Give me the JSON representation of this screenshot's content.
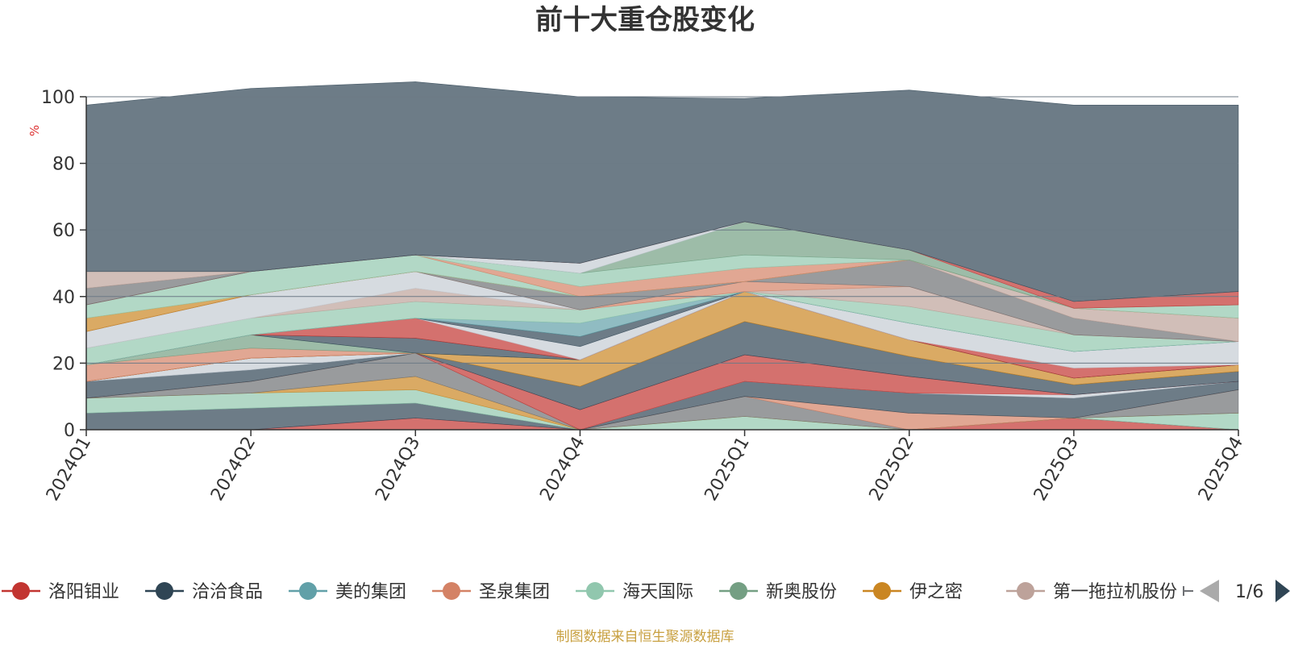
{
  "chart_data": {
    "type": "area",
    "stacked": true,
    "title": "前十大重仓股变化",
    "ylabel": "%",
    "ylim": [
      0,
      100
    ],
    "yticks": [
      0,
      20,
      40,
      60,
      80,
      100
    ],
    "categories": [
      "2024Q1",
      "2024Q2",
      "2024Q3",
      "2024Q4",
      "2025Q1",
      "2025Q2",
      "2025Q3",
      "2025Q4"
    ],
    "grid": true,
    "legend_position": "bottom",
    "legend_page": "1/6",
    "source_note": "制图数据来自恒生聚源数据库",
    "colors": {
      "洛阳钼业": "#c23531",
      "洽洽食品": "#2f4554",
      "美的集团": "#61a0a8",
      "圣泉集团": "#d48265",
      "海天国际": "#91c7ae",
      "新奥股份": "#749f83",
      "伊之密": "#ca8622",
      "第一拖拉机股份": "#bda29a",
      "other_a": "#6e7074",
      "other_b": "#c4ccd3",
      "remainder": "#2f4554"
    },
    "series": [
      {
        "name": "洛阳钼业",
        "color": "#c23531",
        "values": [
          0,
          0,
          3.5,
          0,
          0,
          0,
          3.5,
          0
        ]
      },
      {
        "name": "",
        "color": "#2f4554",
        "values": [
          5,
          6.5,
          4.5,
          0,
          0,
          0,
          0,
          0
        ]
      },
      {
        "name": "",
        "color": "#91c7ae",
        "values": [
          4.5,
          4.5,
          4,
          0,
          4,
          0,
          0,
          5
        ]
      },
      {
        "name": "",
        "color": "#ca8622",
        "values": [
          0,
          0,
          4,
          0,
          0,
          0,
          0,
          0
        ]
      },
      {
        "name": "",
        "color": "#6e7074",
        "values": [
          0,
          3.5,
          7,
          0,
          6,
          0,
          0,
          7
        ]
      },
      {
        "name": "",
        "color": "#d48265",
        "values": [
          0,
          0,
          0,
          0,
          0,
          5,
          0,
          0
        ]
      },
      {
        "name": "",
        "color": "#2f4554",
        "values": [
          5,
          3.5,
          0,
          0,
          4.5,
          6,
          6,
          2.5
        ]
      },
      {
        "name": "",
        "color": "#c4ccd3",
        "values": [
          0,
          3.5,
          0,
          0,
          0,
          0,
          1,
          0
        ]
      },
      {
        "name": "",
        "color": "#c23531",
        "values": [
          0,
          0,
          0,
          6,
          8,
          5,
          0,
          0
        ]
      },
      {
        "name": "",
        "color": "#2f4554",
        "values": [
          0,
          0,
          0,
          7,
          10,
          6,
          3,
          3
        ]
      },
      {
        "name": "",
        "color": "#ca8622",
        "values": [
          0,
          0,
          0,
          8,
          9,
          5,
          2,
          2
        ]
      },
      {
        "name": "",
        "color": "#d48265",
        "values": [
          5,
          3,
          0,
          0,
          0,
          0,
          0,
          0
        ]
      },
      {
        "name": "",
        "color": "#749f83",
        "values": [
          0,
          4,
          0,
          0,
          0,
          0,
          0,
          0
        ]
      },
      {
        "name": "",
        "color": "#2f4554",
        "values": [
          0,
          0,
          4.5,
          0,
          0,
          0,
          0,
          0
        ]
      },
      {
        "name": "",
        "color": "#c23531",
        "values": [
          0,
          0,
          6,
          0,
          0,
          0,
          3,
          0
        ]
      },
      {
        "name": "",
        "color": "#c4ccd3",
        "values": [
          0,
          0,
          0,
          4,
          0,
          5,
          5,
          7
        ]
      },
      {
        "name": "",
        "color": "#2f4554",
        "values": [
          0,
          0,
          0,
          3,
          0,
          0,
          0,
          0
        ]
      },
      {
        "name": "",
        "color": "#61a0a8",
        "values": [
          0,
          0,
          0,
          4,
          0,
          0,
          0,
          0
        ]
      },
      {
        "name": "",
        "color": "#91c7ae",
        "values": [
          5,
          5,
          5,
          4,
          0,
          5,
          5,
          0
        ]
      },
      {
        "name": "",
        "color": "#bda29a",
        "values": [
          0,
          0,
          4,
          0,
          0,
          6,
          0,
          0
        ]
      },
      {
        "name": "",
        "color": "#c4ccd3",
        "values": [
          5,
          7,
          5,
          0,
          0,
          0,
          0,
          0
        ]
      },
      {
        "name": "",
        "color": "#d48265",
        "values": [
          0,
          0,
          0,
          0,
          3,
          0,
          0,
          0
        ]
      },
      {
        "name": "",
        "color": "#6e7074",
        "values": [
          0,
          0,
          0,
          4,
          0,
          8,
          5,
          0
        ]
      },
      {
        "name": "",
        "color": "#bda29a",
        "values": [
          0,
          0,
          0,
          0,
          0,
          0,
          3,
          7
        ]
      },
      {
        "name": "",
        "color": "#ca8622",
        "values": [
          4,
          0,
          0,
          0,
          0,
          0,
          0,
          0
        ]
      },
      {
        "name": "",
        "color": "#91c7ae",
        "values": [
          4,
          7,
          5,
          0,
          0,
          0,
          0,
          0
        ]
      },
      {
        "name": "",
        "color": "#d48265",
        "values": [
          0,
          0,
          0,
          3,
          4,
          0,
          0,
          0
        ]
      },
      {
        "name": "",
        "color": "#91c7ae",
        "values": [
          0,
          0,
          0,
          4,
          4,
          0,
          0,
          4
        ]
      },
      {
        "name": "",
        "color": "#749f83",
        "values": [
          0,
          0,
          0,
          0,
          10,
          3,
          0,
          0
        ]
      },
      {
        "name": "",
        "color": "#c4ccd3",
        "values": [
          0,
          0,
          0,
          3,
          0,
          0,
          0,
          0
        ]
      },
      {
        "name": "",
        "color": "#c23531",
        "values": [
          0,
          0,
          0,
          0,
          0,
          0,
          2,
          4
        ]
      },
      {
        "name": "",
        "color": "#6e7074",
        "values": [
          5,
          0,
          0,
          0,
          0,
          0,
          0,
          0
        ]
      },
      {
        "name": "",
        "color": "#bda29a",
        "values": [
          5,
          0,
          0,
          0,
          0,
          0,
          0,
          0
        ]
      },
      {
        "name": "",
        "color": "#2f4554",
        "values": [
          50,
          55,
          52,
          50,
          37,
          48,
          59,
          56
        ]
      }
    ]
  },
  "legend": {
    "items": [
      {
        "label": "洛阳钼业",
        "color": "#c23531"
      },
      {
        "label": "洽洽食品",
        "color": "#2f4554"
      },
      {
        "label": "美的集团",
        "color": "#61a0a8"
      },
      {
        "label": "圣泉集团",
        "color": "#d48265"
      },
      {
        "label": "海天国际",
        "color": "#91c7ae"
      },
      {
        "label": "新奥股份",
        "color": "#749f83"
      },
      {
        "label": "伊之密",
        "color": "#ca8622"
      },
      {
        "label": "第一拖拉机股份",
        "color": "#bda29a"
      }
    ],
    "page": "1/6",
    "prev_icon": "triangle-left-icon",
    "next_icon": "triangle-right-icon"
  }
}
